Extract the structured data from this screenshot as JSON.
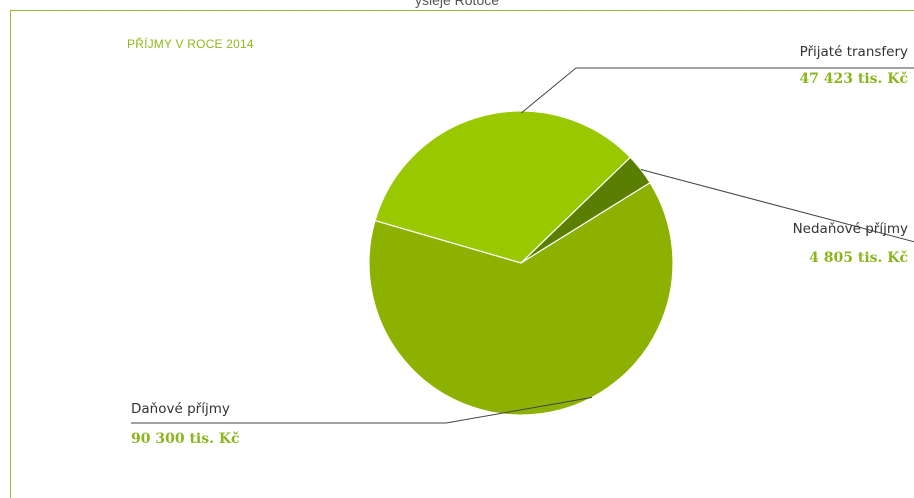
{
  "header_cut_text": "ýsleje Rotoce",
  "chart_data": {
    "type": "pie",
    "title": "PŘÍJMY V ROCE 2014",
    "unit": "tis. Kč",
    "slices": [
      {
        "name": "Přijaté transfery",
        "value": 47423,
        "value_label": "47 423 tis. Kč",
        "color": "#99c700"
      },
      {
        "name": "Nedaňové příjmy",
        "value": 4805,
        "value_label": "4 805 tis. Kč",
        "color": "#5a7f00"
      },
      {
        "name": "Daňové příjmy",
        "value": 90300,
        "value_label": "90 300 tis. Kč",
        "color": "#8cb100"
      }
    ],
    "legend": "none",
    "label_placement": "outside-with-leader-lines"
  }
}
